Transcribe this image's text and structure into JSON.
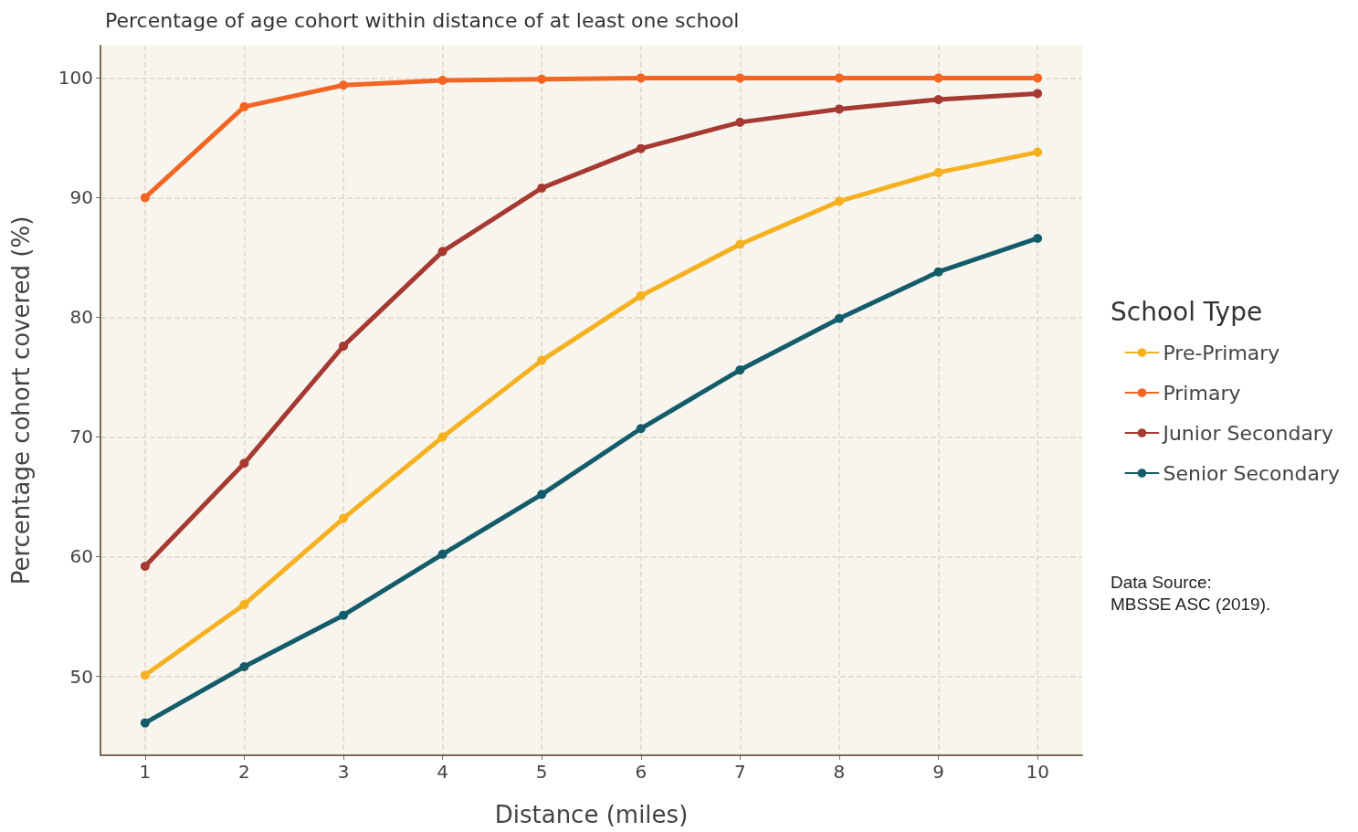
{
  "chart_data": {
    "type": "line",
    "title": "Percentage of age cohort within distance of at least one school",
    "xlabel": "Distance (miles)",
    "ylabel": "Percentage cohort covered (%)",
    "legend_title": "School Type",
    "x": [
      1,
      2,
      3,
      4,
      5,
      6,
      7,
      8,
      9,
      10
    ],
    "series": [
      {
        "name": "Pre-Primary",
        "color": "#f5b120",
        "values": [
          50.1,
          56.0,
          63.2,
          70.0,
          76.4,
          81.8,
          86.1,
          89.7,
          92.1,
          93.8
        ]
      },
      {
        "name": "Primary",
        "color": "#f26522",
        "values": [
          90.0,
          97.6,
          99.4,
          99.8,
          99.9,
          100,
          100,
          100,
          100,
          100
        ]
      },
      {
        "name": "Junior Secondary",
        "color": "#a63a32",
        "values": [
          59.2,
          67.8,
          77.6,
          85.5,
          90.8,
          94.1,
          96.3,
          97.4,
          98.2,
          98.7
        ]
      },
      {
        "name": "Senior Secondary",
        "color": "#145c6a",
        "values": [
          46.1,
          50.8,
          55.1,
          60.2,
          65.2,
          70.7,
          75.6,
          79.9,
          83.8,
          86.6
        ]
      }
    ],
    "xlim": [
      0.55,
      10.45
    ],
    "xticks": [
      1,
      2,
      3,
      4,
      5,
      6,
      7,
      8,
      9,
      10
    ],
    "ylim": [
      43.4,
      102.7
    ],
    "yticks": [
      50,
      60,
      70,
      80,
      90,
      100
    ],
    "grid": true,
    "legend": "right",
    "marker": "circle",
    "line_style": "solid",
    "annotations": [
      "Data Source:\nMBSSE ASC (2019)."
    ]
  }
}
